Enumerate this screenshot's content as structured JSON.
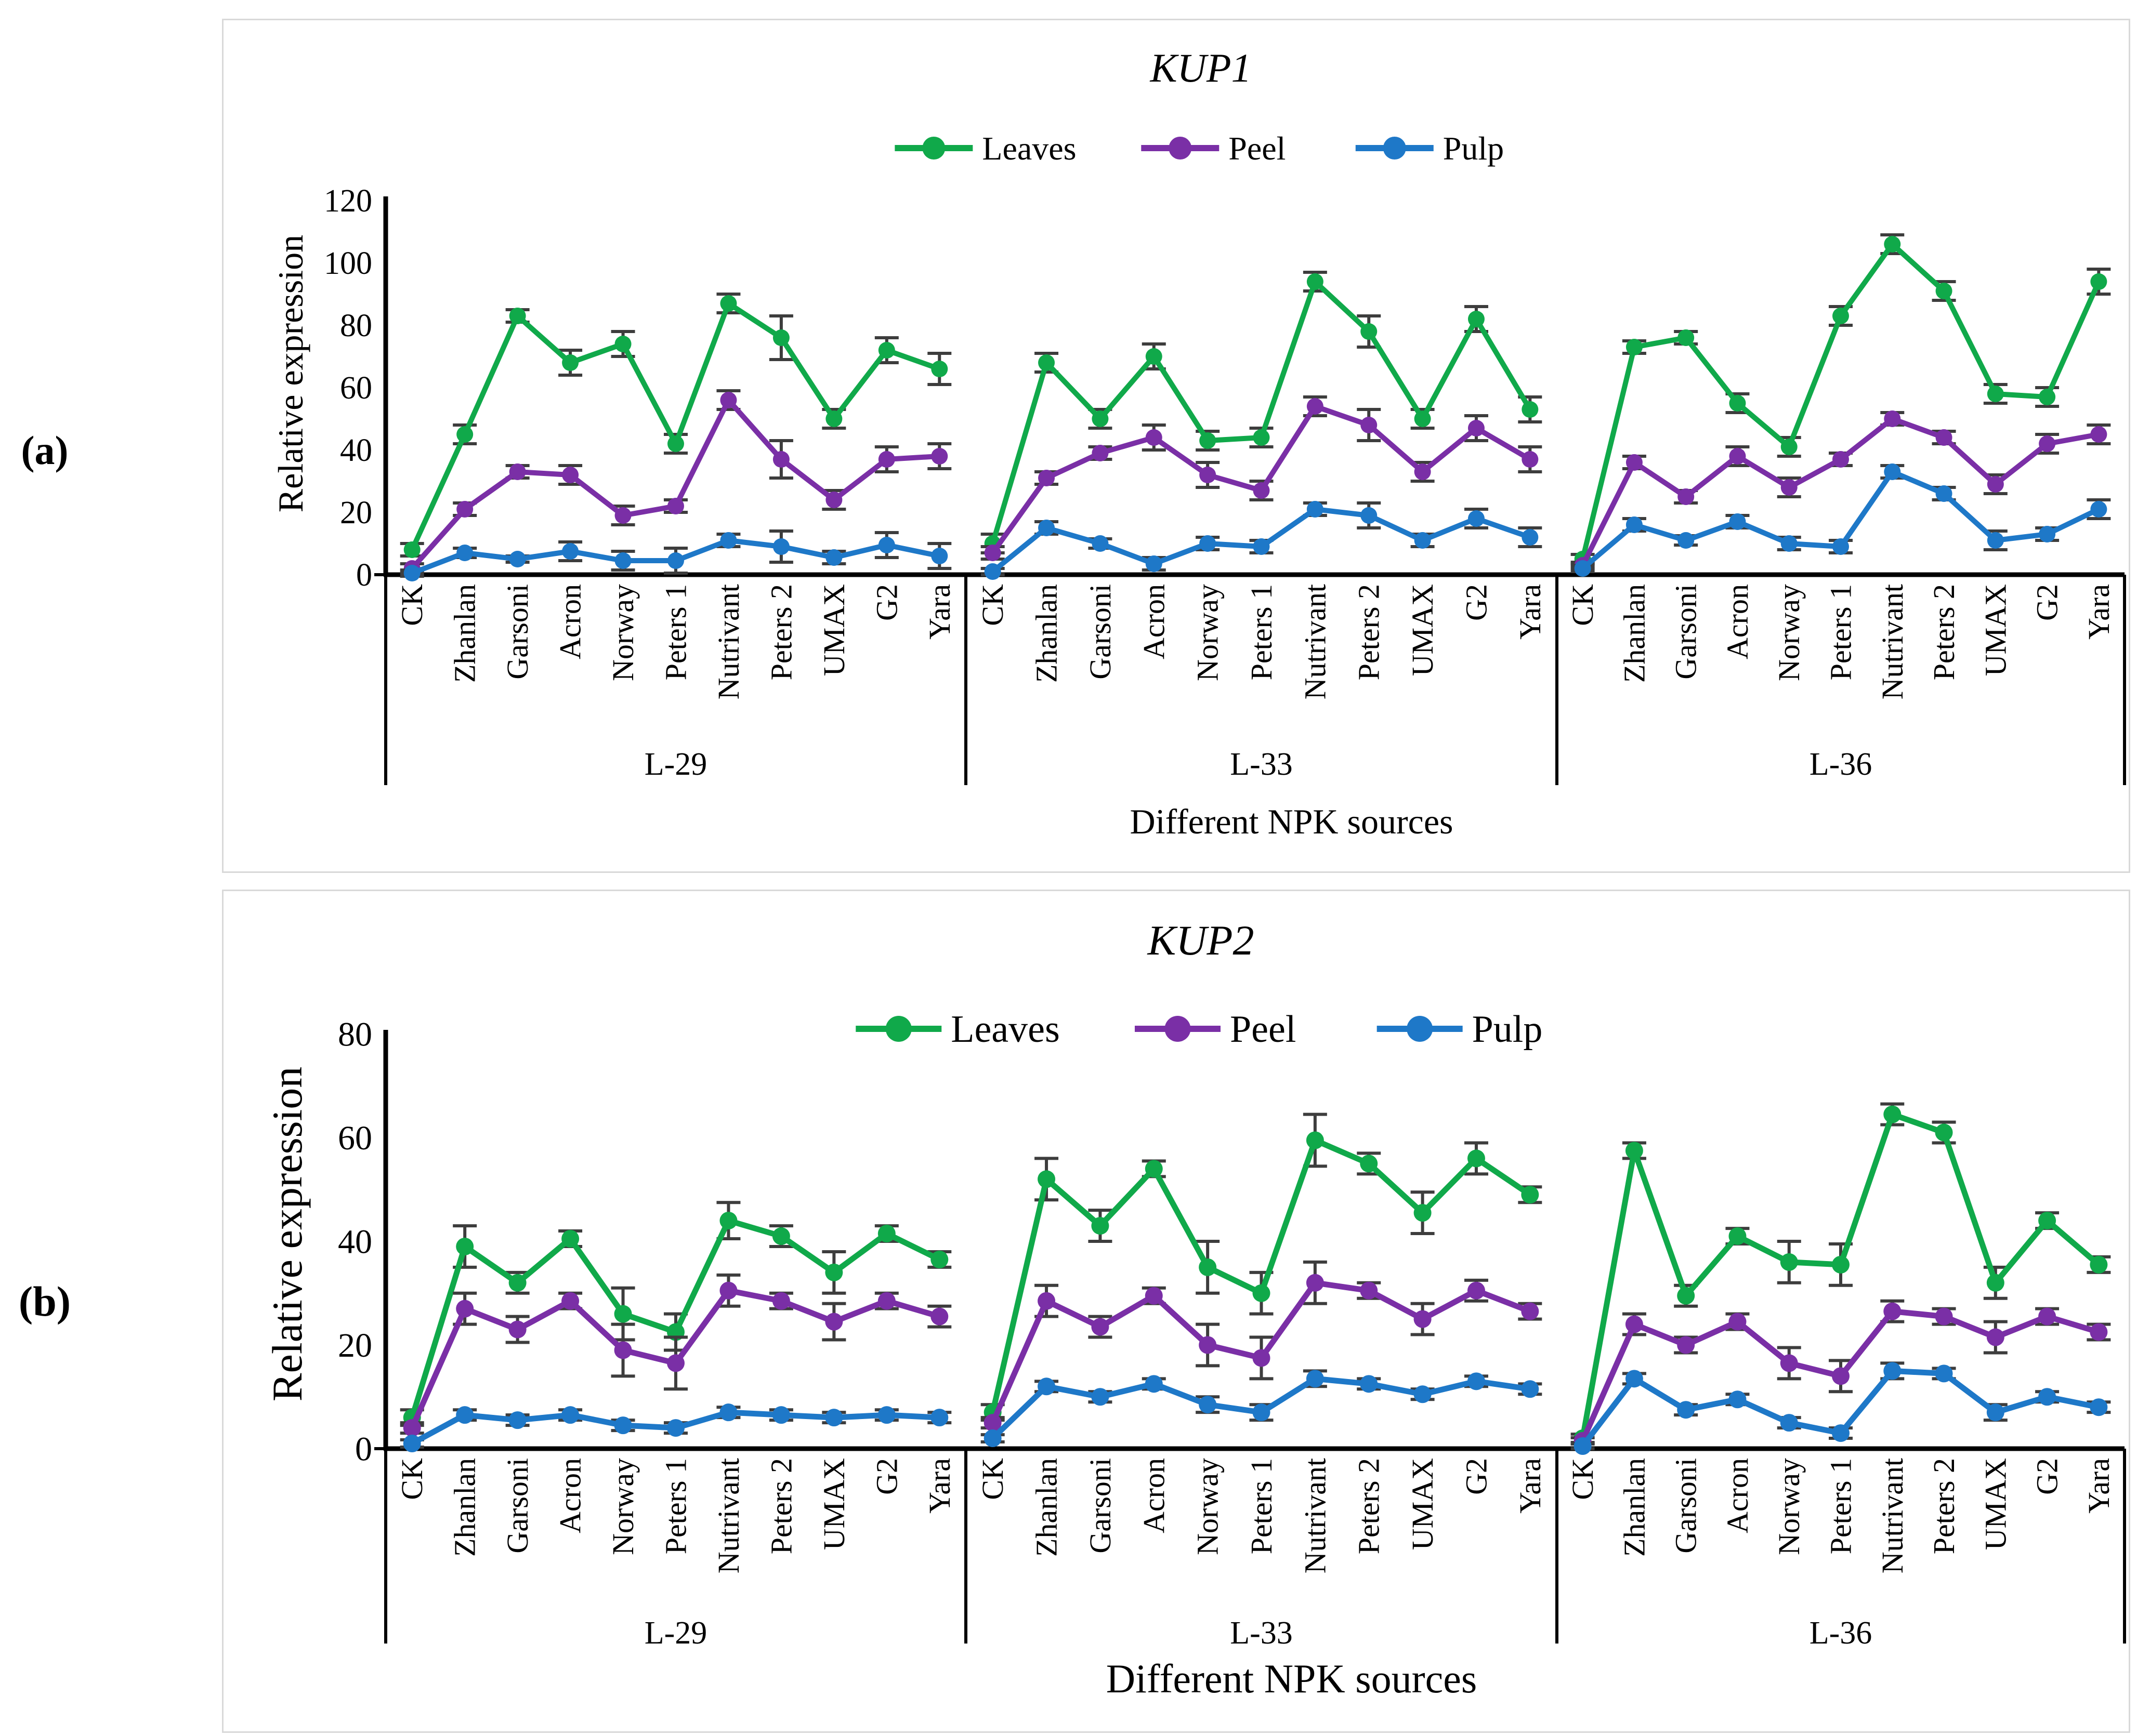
{
  "figure_labels": {
    "a": "(a)",
    "b": "(b)"
  },
  "colors": {
    "leaves": "#10a94a",
    "peel": "#7a2fa6",
    "pulp": "#1e78c8",
    "axis": "#000000",
    "error_bar": "#3d3d3d",
    "panel_border": "#d9d9d9"
  },
  "chart_data": [
    {
      "id": "kup1",
      "panel_label": "(a)",
      "type": "line",
      "title": "KUP1",
      "ylabel": "Relative expression",
      "xlabel": "Different NPK sources",
      "ylim": [
        0,
        120
      ],
      "yticks": [
        0,
        20,
        40,
        60,
        80,
        100,
        120
      ],
      "grid": false,
      "legend_position": "top",
      "legend": [
        "Leaves",
        "Peel",
        "Pulp"
      ],
      "categories": [
        "CK",
        "Zhanlan",
        "Garsoni",
        "Acron",
        "Norway",
        "Peters 1",
        "Nutrivant",
        "Peters 2",
        "UMAX",
        "G2",
        "Yara"
      ],
      "group_labels": [
        "L-29",
        "L-33",
        "L-36"
      ],
      "series": [
        {
          "name": "Leaves",
          "color_key": "leaves",
          "values": [
            [
              8,
              45,
              83,
              68,
              74,
              42,
              87,
              76,
              50,
              72,
              66
            ],
            [
              10,
              68,
              50,
              70,
              43,
              44,
              94,
              78,
              50,
              82,
              53
            ],
            [
              5,
              73,
              76,
              55,
              41,
              83,
              106,
              91,
              58,
              57,
              94
            ]
          ],
          "err": [
            [
              2,
              3,
              2,
              4,
              4,
              3,
              3,
              7,
              3,
              4,
              5
            ],
            [
              3,
              3,
              3,
              4,
              3,
              3,
              3,
              5,
              3,
              4,
              4
            ],
            [
              1.5,
              2,
              2,
              3,
              3,
              3,
              3,
              3,
              3,
              3,
              4
            ]
          ]
        },
        {
          "name": "Peel",
          "color_key": "peel",
          "values": [
            [
              2,
              21,
              33,
              32,
              19,
              22,
              56,
              37,
              24,
              37,
              38
            ],
            [
              7,
              31,
              39,
              44,
              32,
              27,
              54,
              48,
              33,
              47,
              37
            ],
            [
              3,
              36,
              25,
              38,
              28,
              37,
              50,
              44,
              29,
              42,
              45
            ]
          ],
          "err": [
            [
              1.5,
              2,
              2,
              3,
              3,
              2,
              3,
              6,
              3,
              4,
              4
            ],
            [
              2,
              2,
              2,
              4,
              4,
              3,
              3,
              5,
              3,
              4,
              4
            ],
            [
              1,
              2,
              2,
              3,
              3,
              2,
              2,
              2,
              3,
              3,
              3
            ]
          ]
        },
        {
          "name": "Pulp",
          "color_key": "pulp",
          "values": [
            [
              0.5,
              7,
              5,
              7.5,
              4.5,
              4.5,
              11,
              9,
              5.5,
              9.5,
              6
            ],
            [
              1,
              15,
              10,
              3.5,
              10,
              9,
              21,
              19,
              11,
              18,
              12
            ],
            [
              2,
              16,
              11,
              17,
              10,
              9,
              33,
              26,
              11,
              13,
              21
            ]
          ],
          "err": [
            [
              1,
              1.5,
              1,
              3,
              3,
              4,
              2,
              5,
              2,
              4,
              4
            ],
            [
              1,
              2,
              1.5,
              2,
              2,
              2,
              2,
              4,
              2,
              3,
              3
            ],
            [
              1,
              2,
              1.5,
              2,
              2,
              2,
              2,
              2,
              3,
              2,
              3
            ]
          ]
        }
      ]
    },
    {
      "id": "kup2",
      "panel_label": "(b)",
      "type": "line",
      "title": "KUP2",
      "ylabel": "Relative expression",
      "xlabel": "Different NPK sources",
      "ylim": [
        0,
        80
      ],
      "yticks": [
        0,
        20,
        40,
        60,
        80
      ],
      "grid": false,
      "legend_position": "top",
      "legend": [
        "Leaves",
        "Peel",
        "Pulp"
      ],
      "categories": [
        "CK",
        "Zhanlan",
        "Garsoni",
        "Acron",
        "Norway",
        "Peters 1",
        "Nutrivant",
        "Peters 2",
        "UMAX",
        "G2",
        "Yara"
      ],
      "group_labels": [
        "L-29",
        "L-33",
        "L-36"
      ],
      "series": [
        {
          "name": "Leaves",
          "color_key": "leaves",
          "values": [
            [
              6,
              39,
              32,
              40.5,
              26,
              22.5,
              44,
              41,
              34,
              41.5,
              36.5
            ],
            [
              7,
              52,
              43,
              54,
              35,
              30,
              59.5,
              55,
              45.5,
              56,
              49
            ],
            [
              2,
              57.5,
              29.5,
              41,
              36,
              35.5,
              64.5,
              61,
              32,
              44,
              35.5
            ]
          ],
          "err": [
            [
              1.5,
              4,
              2,
              1.5,
              5,
              3.5,
              3.5,
              2,
              4,
              1.5,
              1.5
            ],
            [
              1.5,
              4,
              3,
              1.5,
              5,
              4,
              5,
              2,
              4,
              3,
              1.5
            ],
            [
              0.8,
              1.5,
              2,
              1.5,
              4,
              4,
              2,
              2,
              3,
              1.5,
              1.5
            ]
          ]
        },
        {
          "name": "Peel",
          "color_key": "peel",
          "values": [
            [
              4,
              27,
              23,
              28.5,
              19,
              16.5,
              30.5,
              28.5,
              24.5,
              28.5,
              25.5
            ],
            [
              5,
              28.5,
              23.5,
              29.5,
              20,
              17.5,
              32,
              30.5,
              25,
              30.5,
              26.5
            ],
            [
              1.5,
              24,
              20,
              24.5,
              16.5,
              14,
              26.5,
              25.5,
              21.5,
              25.5,
              22.5
            ]
          ],
          "err": [
            [
              1,
              3,
              2.5,
              1.5,
              5,
              5,
              3,
              1.5,
              3.5,
              1.5,
              2
            ],
            [
              1,
              3,
              2,
              1.5,
              4,
              4,
              4,
              1.5,
              3,
              2,
              1.5
            ],
            [
              0.6,
              2,
              1.5,
              1.5,
              3,
              3,
              2,
              1.5,
              3,
              1.5,
              1.5
            ]
          ]
        },
        {
          "name": "Pulp",
          "color_key": "pulp",
          "values": [
            [
              1,
              6.5,
              5.5,
              6.5,
              4.5,
              4,
              7,
              6.5,
              6,
              6.5,
              6
            ],
            [
              2,
              12,
              10,
              12.5,
              8.5,
              7,
              13.5,
              12.5,
              10.5,
              13,
              11.5
            ],
            [
              0.5,
              13.5,
              7.5,
              9.5,
              5,
              3,
              15,
              14.5,
              7,
              10,
              8
            ]
          ],
          "err": [
            [
              0.7,
              1,
              1,
              1,
              1,
              1,
              1,
              1,
              1,
              1,
              1
            ],
            [
              0.7,
              1,
              1,
              1,
              1.5,
              1.5,
              1.5,
              1,
              1,
              1,
              1
            ],
            [
              0.5,
              1,
              1,
              1,
              1,
              1,
              1.5,
              1,
              1.5,
              1,
              1
            ]
          ]
        }
      ]
    }
  ]
}
